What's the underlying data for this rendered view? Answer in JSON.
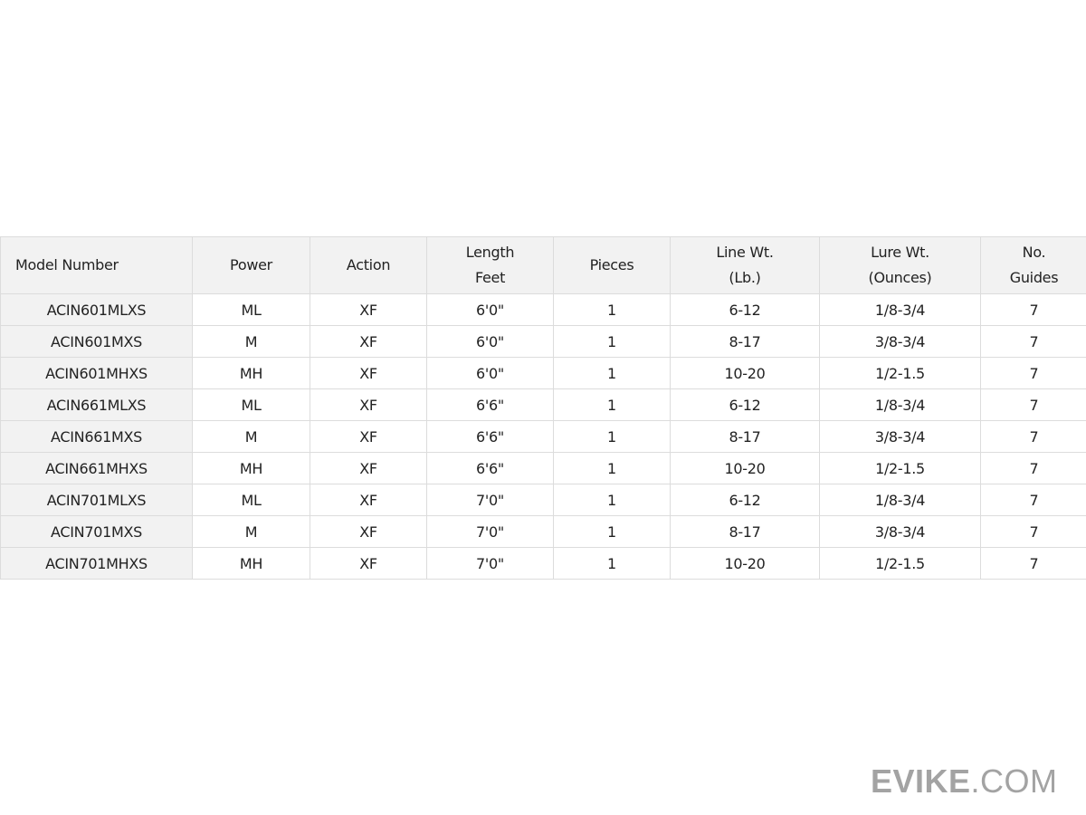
{
  "table": {
    "headers": [
      [
        "Model Number"
      ],
      [
        "Power"
      ],
      [
        "Action"
      ],
      [
        "Length",
        "Feet"
      ],
      [
        "Pieces"
      ],
      [
        "Line Wt.",
        "(Lb.)"
      ],
      [
        "Lure Wt.",
        "(Ounces)"
      ],
      [
        "No.",
        "Guides"
      ]
    ],
    "rows": [
      [
        "ACIN601MLXS",
        "ML",
        "XF",
        "6'0\"",
        "1",
        "6-12",
        "1/8-3/4",
        "7"
      ],
      [
        "ACIN601MXS",
        "M",
        "XF",
        "6'0\"",
        "1",
        "8-17",
        "3/8-3/4",
        "7"
      ],
      [
        "ACIN601MHXS",
        "MH",
        "XF",
        "6'0\"",
        "1",
        "10-20",
        "1/2-1.5",
        "7"
      ],
      [
        "ACIN661MLXS",
        "ML",
        "XF",
        "6'6\"",
        "1",
        "6-12",
        "1/8-3/4",
        "7"
      ],
      [
        "ACIN661MXS",
        "M",
        "XF",
        "6'6\"",
        "1",
        "8-17",
        "3/8-3/4",
        "7"
      ],
      [
        "ACIN661MHXS",
        "MH",
        "XF",
        "6'6\"",
        "1",
        "10-20",
        "1/2-1.5",
        "7"
      ],
      [
        "ACIN701MLXS",
        "ML",
        "XF",
        "7'0\"",
        "1",
        "6-12",
        "1/8-3/4",
        "7"
      ],
      [
        "ACIN701MXS",
        "M",
        "XF",
        "7'0\"",
        "1",
        "8-17",
        "3/8-3/4",
        "7"
      ],
      [
        "ACIN701MHXS",
        "MH",
        "XF",
        "7'0\"",
        "1",
        "10-20",
        "1/2-1.5",
        "7"
      ]
    ]
  },
  "watermark": {
    "bold": "EVIKE",
    "light": ".COM"
  }
}
